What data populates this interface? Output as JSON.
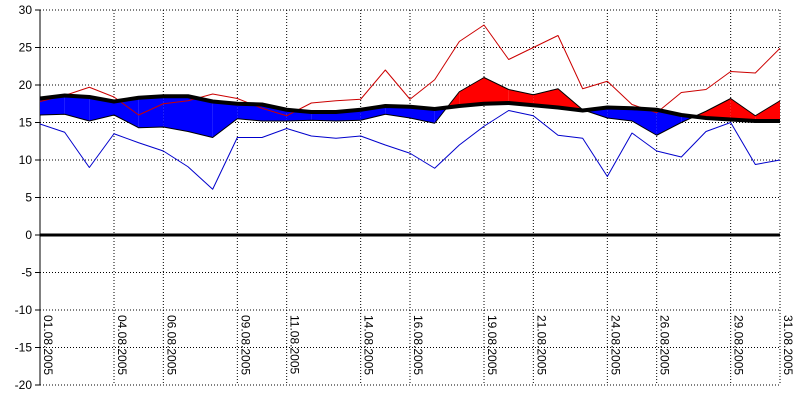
{
  "chart_data": {
    "type": "area",
    "title": "",
    "xlabel": "",
    "ylabel": "",
    "ylim": [
      -20,
      30
    ],
    "y_ticks": [
      30,
      25,
      20,
      15,
      10,
      5,
      0,
      -5,
      -10,
      -15,
      -20
    ],
    "grid": true,
    "legend": "none",
    "x_ticks": [
      {
        "day": 1,
        "label": "01.08.2005"
      },
      {
        "day": 4,
        "label": "04.08.2005"
      },
      {
        "day": 6,
        "label": "06.08.2005"
      },
      {
        "day": 9,
        "label": "09.08.2005"
      },
      {
        "day": 11,
        "label": "11.08.2005"
      },
      {
        "day": 14,
        "label": "14.08.2005"
      },
      {
        "day": 16,
        "label": "16.08.2005"
      },
      {
        "day": 19,
        "label": "19.08.2005"
      },
      {
        "day": 21,
        "label": "21.08.2005"
      },
      {
        "day": 24,
        "label": "24.08.2005"
      },
      {
        "day": 26,
        "label": "26.08.2005"
      },
      {
        "day": 29,
        "label": "29.08.2005"
      },
      {
        "day": 31,
        "label": "31.08.2005"
      }
    ],
    "days": [
      1,
      2,
      3,
      4,
      5,
      6,
      7,
      8,
      9,
      10,
      11,
      12,
      13,
      14,
      15,
      16,
      17,
      18,
      19,
      20,
      21,
      22,
      23,
      24,
      25,
      26,
      27,
      28,
      29,
      30,
      31
    ],
    "series": [
      {
        "role": "max",
        "values": [
          17.8,
          18.6,
          19.7,
          18.4,
          16.0,
          17.5,
          17.9,
          18.8,
          18.2,
          16.9,
          15.9,
          17.6,
          17.9,
          18.1,
          22.0,
          18.1,
          20.7,
          25.8,
          28.0,
          23.4,
          25.0,
          26.6,
          19.5,
          20.5,
          17.4,
          16.3,
          19.0,
          19.4,
          21.8,
          21.6,
          24.9
        ]
      },
      {
        "role": "mean",
        "values": [
          16.0,
          16.1,
          15.2,
          16.0,
          14.3,
          14.4,
          13.8,
          13.0,
          15.5,
          15.2,
          15.2,
          15.3,
          15.2,
          15.3,
          16.1,
          15.6,
          14.9,
          19.1,
          21.0,
          19.4,
          18.7,
          19.5,
          16.7,
          15.6,
          15.2,
          13.3,
          15.0,
          16.5,
          18.2,
          15.9,
          17.9
        ]
      },
      {
        "role": "normal",
        "values": [
          18.2,
          18.6,
          18.4,
          17.8,
          18.3,
          18.5,
          18.5,
          17.8,
          17.5,
          17.4,
          16.7,
          16.4,
          16.4,
          16.7,
          17.2,
          17.1,
          16.8,
          17.2,
          17.5,
          17.6,
          17.3,
          17.0,
          16.6,
          17.0,
          16.9,
          16.7,
          16.0,
          15.6,
          15.4,
          15.2,
          15.2
        ]
      },
      {
        "role": "min",
        "values": [
          14.8,
          13.7,
          9.0,
          13.5,
          12.3,
          11.2,
          9.1,
          6.1,
          13.0,
          13.0,
          14.2,
          13.2,
          12.9,
          13.2,
          12.0,
          10.9,
          8.9,
          12.0,
          14.5,
          16.6,
          15.9,
          13.3,
          12.9,
          7.8,
          13.6,
          11.2,
          10.4,
          13.8,
          15.0,
          9.4,
          10.0
        ]
      }
    ],
    "colors": {
      "above_normal": "#ff0000",
      "below_normal": "#0000ff",
      "max_line": "#cc0000",
      "min_line": "#0000cc",
      "normal_line": "#000000",
      "zero_line": "#000000",
      "grid": "#000000"
    }
  }
}
